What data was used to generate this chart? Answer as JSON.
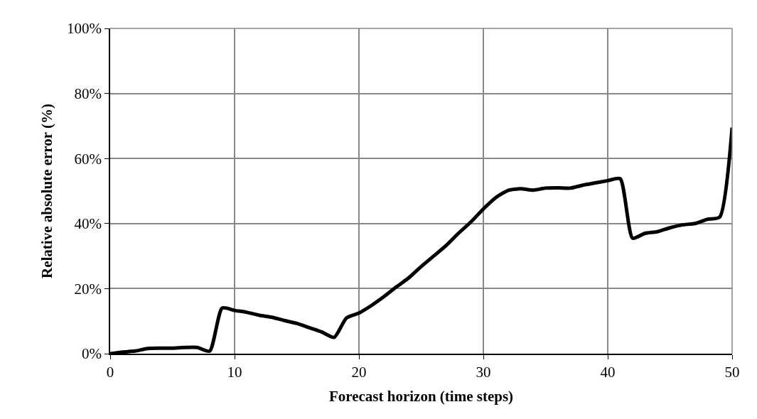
{
  "chart_data": {
    "type": "line",
    "xlabel": "Forecast horizon (time steps)",
    "ylabel": "Relative absolute error (%)",
    "x": [
      0,
      1,
      2,
      3,
      4,
      5,
      6,
      7,
      8,
      9,
      10,
      11,
      12,
      13,
      14,
      15,
      16,
      17,
      18,
      19,
      20,
      21,
      22,
      23,
      24,
      25,
      26,
      27,
      28,
      29,
      30,
      31,
      32,
      33,
      34,
      35,
      36,
      37,
      38,
      39,
      40,
      41,
      42,
      43,
      44,
      45,
      46,
      47,
      48,
      49,
      50
    ],
    "series": [
      {
        "color": "#000000",
        "values": [
          0,
          0.5,
          0.8,
          1.6,
          1.7,
          1.7,
          1.9,
          1.9,
          0.8,
          14,
          13.3,
          12.7,
          11.8,
          11.2,
          10.2,
          9.3,
          8,
          6.7,
          5,
          11,
          12.5,
          14.8,
          17.5,
          20.5,
          23.3,
          26.8,
          30,
          33.2,
          37,
          40.5,
          44.5,
          48,
          50.2,
          50.7,
          50.3,
          50.9,
          51,
          50.9,
          51.8,
          52.5,
          53.2,
          53.8,
          35.5,
          37,
          37.5,
          38.7,
          39.6,
          40,
          41.3,
          42,
          69.5
        ]
      }
    ],
    "xlim": [
      0,
      50
    ],
    "xticks": [
      0,
      10,
      20,
      30,
      40,
      50
    ],
    "ylim": [
      0,
      100
    ],
    "yticks": [
      {
        "value": 0,
        "label": "0%"
      },
      {
        "value": 20,
        "label": "20%"
      },
      {
        "value": 40,
        "label": "40%"
      },
      {
        "value": 60,
        "label": "60%"
      },
      {
        "value": 80,
        "label": "80%"
      },
      {
        "value": 100,
        "label": "100%"
      }
    ],
    "grid": true,
    "marker": "none",
    "line_style": "solid"
  }
}
